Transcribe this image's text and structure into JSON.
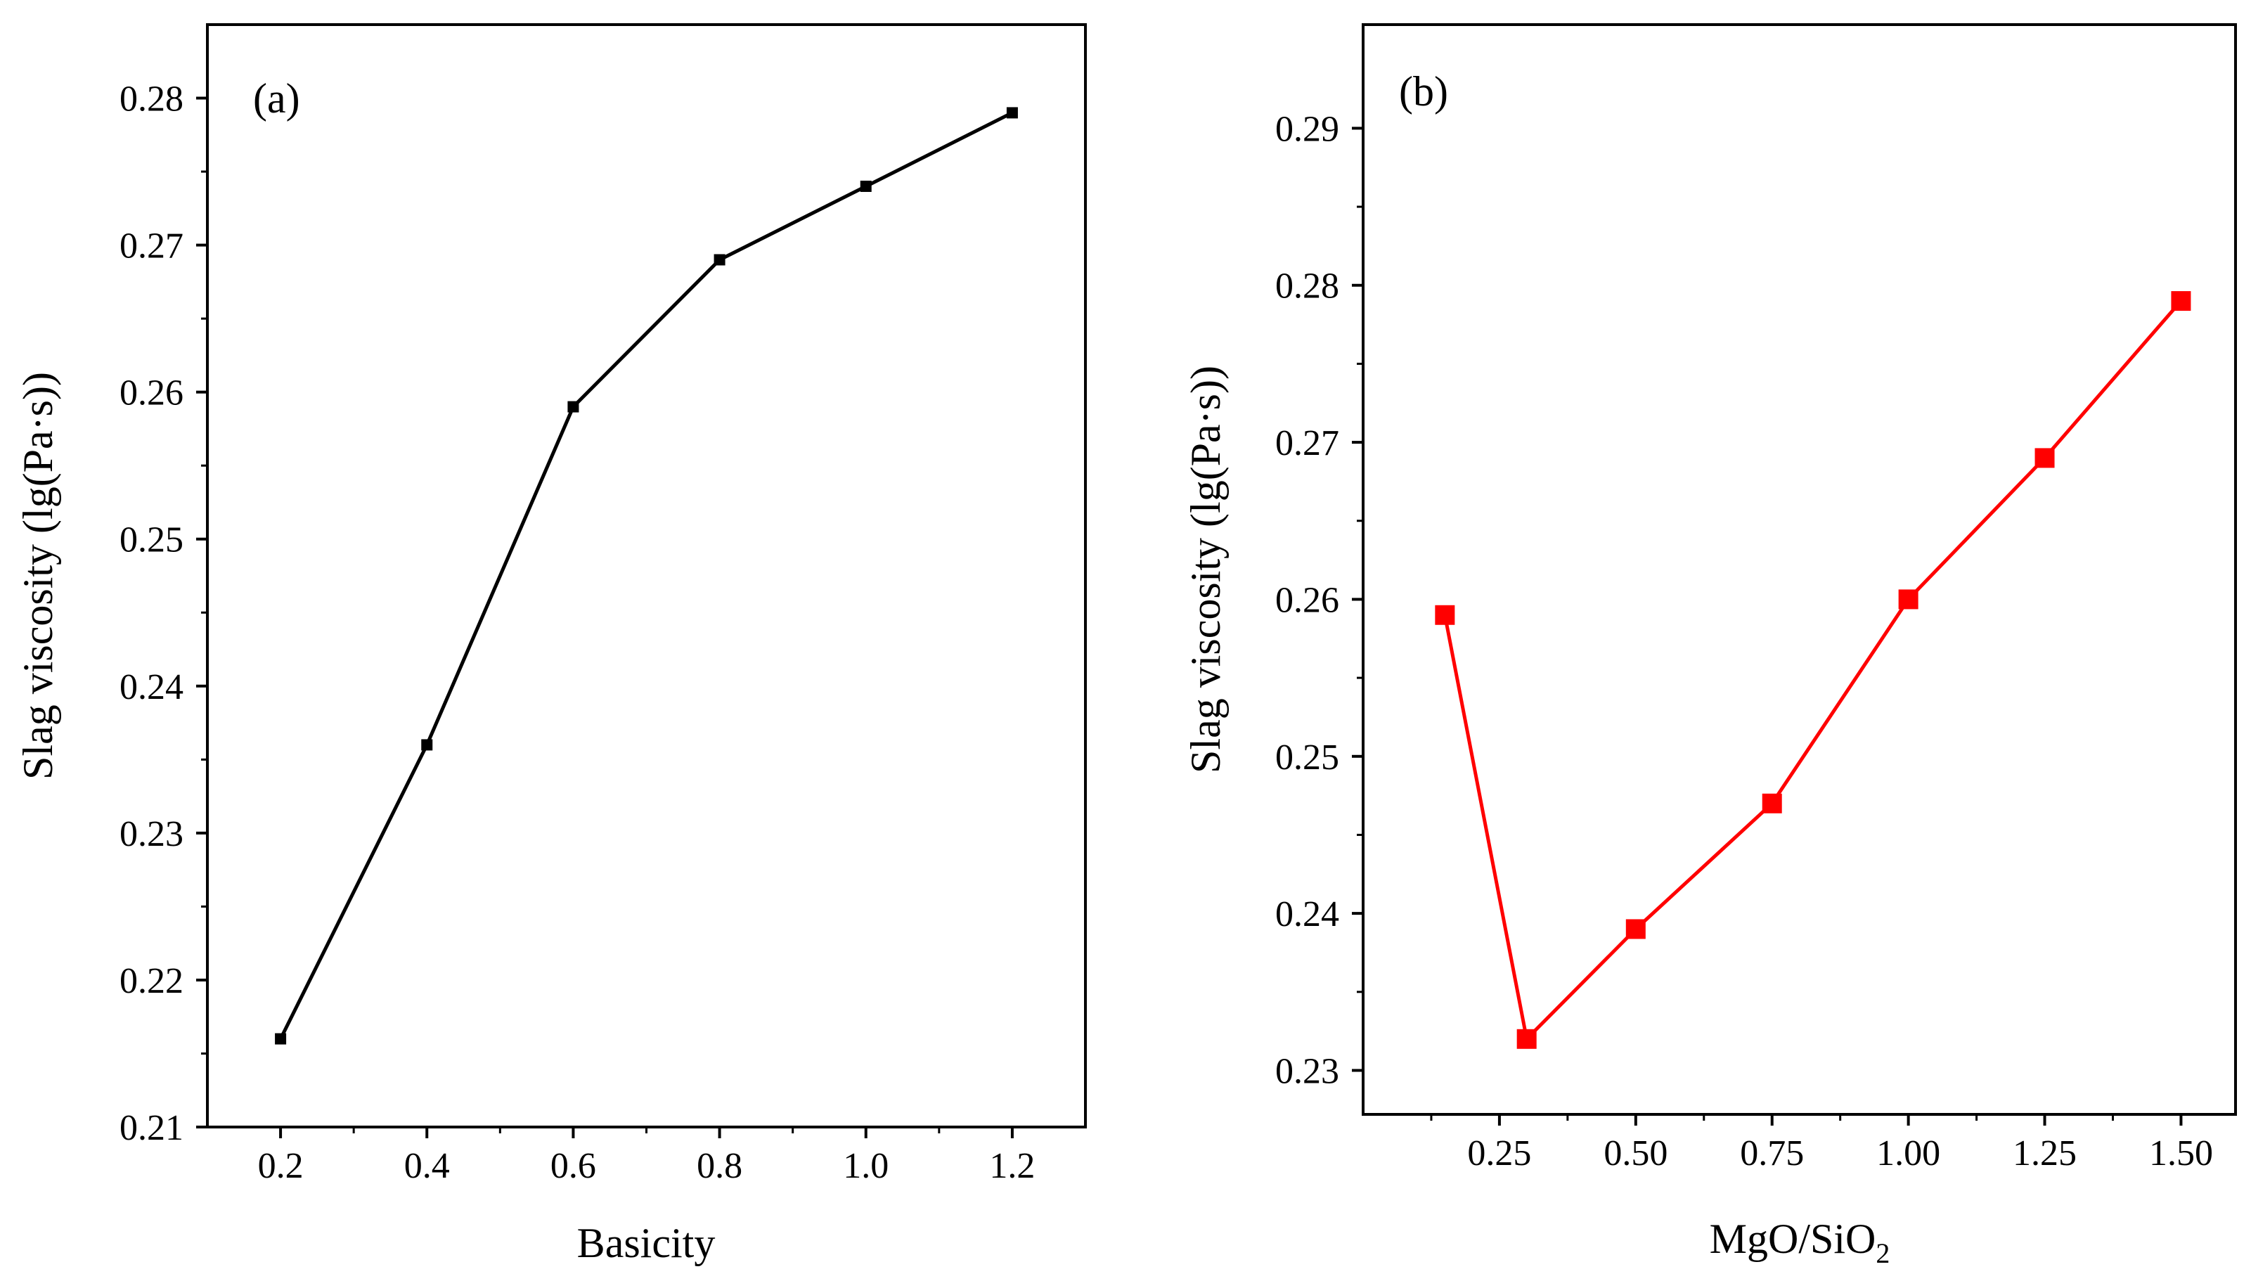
{
  "chart_data": [
    {
      "type": "line",
      "panel_label": "(a)",
      "xlabel": "Basicity",
      "ylabel": "Slag viscosity (lg(Pa·s))",
      "xlim": [
        0.1,
        1.3
      ],
      "ylim": [
        0.21,
        0.285
      ],
      "x_ticks": [
        0.2,
        0.4,
        0.6,
        0.8,
        1.0,
        1.2
      ],
      "x_tick_labels": [
        "0.2",
        "0.4",
        "0.6",
        "0.8",
        "1.0",
        "1.2"
      ],
      "x_minor_ticks": [
        0.3,
        0.5,
        0.7,
        0.9,
        1.1
      ],
      "y_ticks": [
        0.21,
        0.22,
        0.23,
        0.24,
        0.25,
        0.26,
        0.27,
        0.28
      ],
      "y_tick_labels": [
        "0.21",
        "0.22",
        "0.23",
        "0.24",
        "0.25",
        "0.26",
        "0.27",
        "0.28"
      ],
      "y_minor_ticks": [
        0.215,
        0.225,
        0.235,
        0.245,
        0.255,
        0.265,
        0.275
      ],
      "color": "#000000",
      "marker": "square",
      "series": [
        {
          "name": "Slag viscosity",
          "x": [
            0.2,
            0.4,
            0.6,
            0.8,
            1.0,
            1.2
          ],
          "values": [
            0.216,
            0.236,
            0.259,
            0.269,
            0.274,
            0.279
          ]
        }
      ]
    },
    {
      "type": "line",
      "panel_label": "(b)",
      "xlabel": "MgO/SiO",
      "xlabel_subscript": "2",
      "ylabel": "Slag viscosity (lg(Pa·s))",
      "xlim": [
        0.0,
        1.6
      ],
      "ylim": [
        0.2272,
        0.2966
      ],
      "x_ticks": [
        0.25,
        0.5,
        0.75,
        1.0,
        1.25,
        1.5
      ],
      "x_tick_labels": [
        "0.25",
        "0.50",
        "0.75",
        "1.00",
        "1.25",
        "1.50"
      ],
      "x_minor_ticks": [
        0.125,
        0.375,
        0.625,
        0.875,
        1.125,
        1.375
      ],
      "y_ticks": [
        0.23,
        0.24,
        0.25,
        0.26,
        0.27,
        0.28,
        0.29
      ],
      "y_tick_labels": [
        "0.23",
        "0.24",
        "0.25",
        "0.26",
        "0.27",
        "0.28",
        "0.29"
      ],
      "y_minor_ticks": [
        0.235,
        0.245,
        0.255,
        0.265,
        0.275,
        0.285
      ],
      "color": "#ff0000",
      "marker": "square",
      "series": [
        {
          "name": "Slag viscosity",
          "x": [
            0.15,
            0.3,
            0.5,
            0.75,
            1.0,
            1.25,
            1.5
          ],
          "values": [
            0.259,
            0.232,
            0.239,
            0.247,
            0.26,
            0.269,
            0.279
          ]
        }
      ]
    }
  ]
}
